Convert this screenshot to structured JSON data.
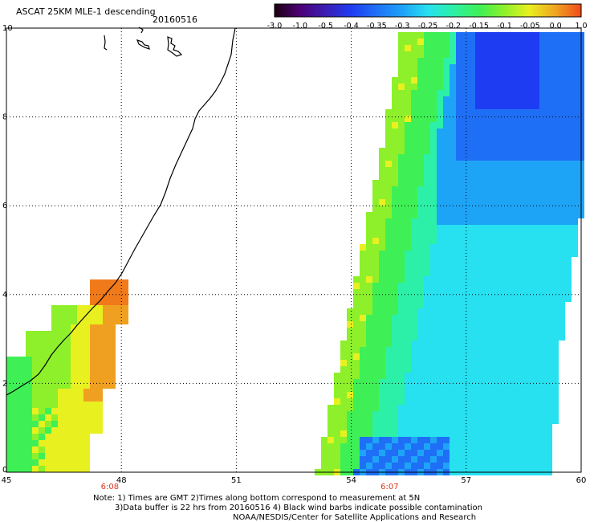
{
  "header": {
    "title": "ASCAT 25KM MLE-1 descending",
    "date": "20160516"
  },
  "colorbar": {
    "labels": [
      "-3.0",
      "-1.0",
      "-0.5",
      "-0.4",
      "-0.35",
      "-0.3",
      "-0.25",
      "-0.2",
      "-0.15",
      "-0.1",
      "-0.05",
      "0.0",
      "1.0"
    ],
    "colors": [
      "#1a0010",
      "#4b0072",
      "#3a1fb5",
      "#1e3cf2",
      "#1f6ff6",
      "#1ea4f7",
      "#27e0f0",
      "#2cf0a8",
      "#3ef055",
      "#8ef02a",
      "#e8f020",
      "#f0a020",
      "#f04a1a"
    ]
  },
  "map": {
    "x_ticks": [
      "45",
      "48",
      "51",
      "54",
      "57",
      "60"
    ],
    "y_ticks": [
      "0",
      "2",
      "4",
      "6",
      "8",
      "10"
    ],
    "x_range": [
      45,
      60
    ],
    "y_range": [
      0,
      10
    ],
    "pass_times": [
      {
        "label": "6:08",
        "lon": 47.7
      },
      {
        "label": "6:07",
        "lon": 55.0
      }
    ]
  },
  "notes": {
    "line1": "Note: 1) Times are GMT 2)Times along bottom correspond to measurement at 5N",
    "line2": "3)Data buffer is 22 hrs from 20160516 4) Black wind barbs indicate possible contamination",
    "line3": "NOAA/NESDIS/Center for Satellite Applications and Research"
  }
}
